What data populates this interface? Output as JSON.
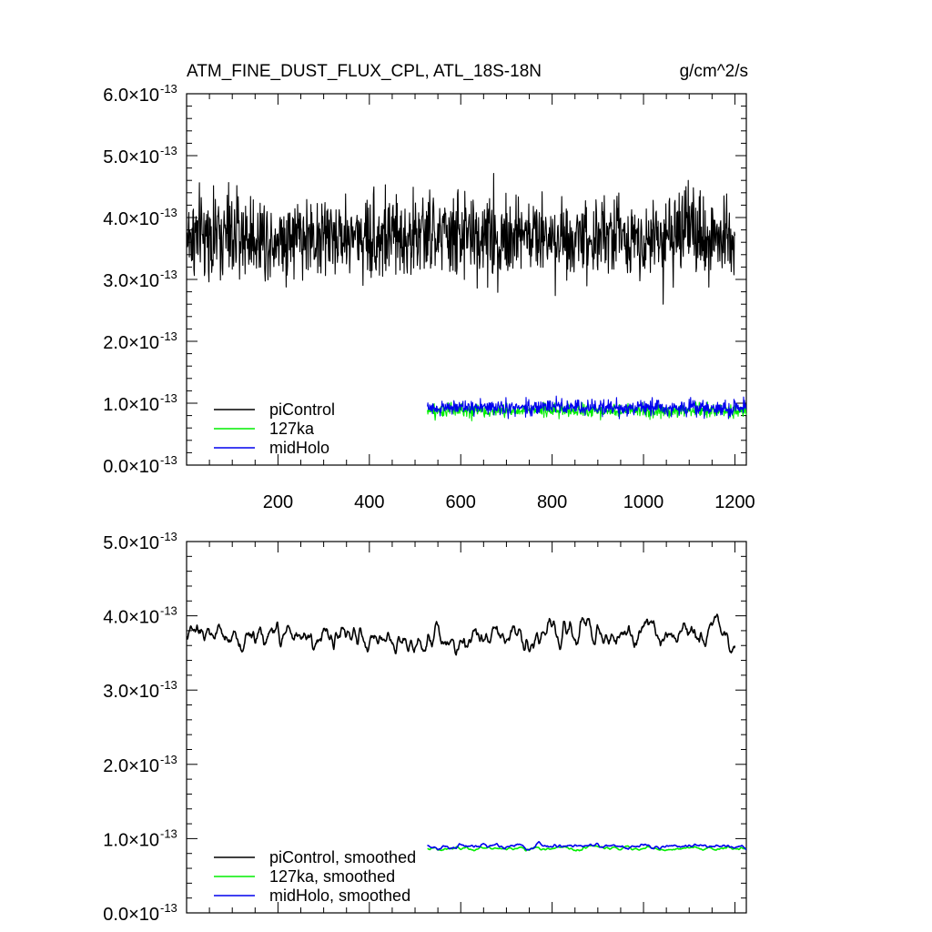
{
  "chart_data": [
    {
      "type": "line",
      "title": "ATM_FINE_DUST_FLUX_CPL, ATL_18S-18N",
      "units": "g/cm^2/s",
      "xlim": [
        0,
        1225
      ],
      "xticks": [
        200,
        400,
        600,
        800,
        1000,
        1200
      ],
      "ylim": [
        0,
        6
      ],
      "yscale_label": "×10^-13",
      "y_tick_labels": [
        {
          "v": 0,
          "mant": "0.0",
          "mid": "×10",
          "exp": "-13"
        },
        {
          "v": 1,
          "mant": "1.0",
          "mid": "×10",
          "exp": "-13"
        },
        {
          "v": 2,
          "mant": "2.0",
          "mid": "×10",
          "exp": "-13"
        },
        {
          "v": 3,
          "mant": "3.0",
          "mid": "×10",
          "exp": "-13"
        },
        {
          "v": 4,
          "mant": "4.0",
          "mid": "×10",
          "exp": "-13"
        },
        {
          "v": 5,
          "mant": "5.0",
          "mid": "×10",
          "exp": "-13"
        },
        {
          "v": 6,
          "mant": "6.0",
          "mid": "×10",
          "exp": "-13"
        }
      ],
      "legend_placement": "bottom-left",
      "series": [
        {
          "name": "piControl",
          "color": "#000000",
          "x_range": [
            1,
            1200
          ],
          "mean": 3.7,
          "min": 2.6,
          "max": 5.3,
          "noise": "high-frequency"
        },
        {
          "name": "127ka",
          "color": "#00ee00",
          "x_range": [
            527,
            1225
          ],
          "mean": 0.88,
          "min": 0.68,
          "max": 1.1,
          "noise": "high-frequency"
        },
        {
          "name": "midHolo",
          "color": "#0000ee",
          "x_range": [
            527,
            1225
          ],
          "mean": 0.93,
          "min": 0.72,
          "max": 1.2,
          "noise": "high-frequency"
        }
      ]
    },
    {
      "type": "line",
      "title": "",
      "xlim": [
        0,
        1225
      ],
      "xticks": [
        200,
        400,
        600,
        800,
        1000,
        1200
      ],
      "ylim": [
        0,
        5
      ],
      "yscale_label": "×10^-13",
      "y_tick_labels": [
        {
          "v": 0,
          "mant": "0.0",
          "mid": "×10",
          "exp": "-13"
        },
        {
          "v": 1,
          "mant": "1.0",
          "mid": "×10",
          "exp": "-13"
        },
        {
          "v": 2,
          "mant": "2.0",
          "mid": "×10",
          "exp": "-13"
        },
        {
          "v": 3,
          "mant": "3.0",
          "mid": "×10",
          "exp": "-13"
        },
        {
          "v": 4,
          "mant": "4.0",
          "mid": "×10",
          "exp": "-13"
        },
        {
          "v": 5,
          "mant": "5.0",
          "mid": "×10",
          "exp": "-13"
        }
      ],
      "legend_placement": "bottom-left",
      "series": [
        {
          "name": "piControl, smoothed",
          "color": "#000000",
          "x_range": [
            1,
            1200
          ],
          "mean": 3.72,
          "min": 3.25,
          "max": 4.22,
          "noise": "smoothed"
        },
        {
          "name": "127ka, smoothed",
          "color": "#00ee00",
          "x_range": [
            527,
            1225
          ],
          "mean": 0.87,
          "min": 0.8,
          "max": 0.95,
          "noise": "smoothed"
        },
        {
          "name": "midHolo, smoothed",
          "color": "#0000ee",
          "x_range": [
            527,
            1225
          ],
          "mean": 0.9,
          "min": 0.82,
          "max": 1.0,
          "noise": "smoothed"
        }
      ]
    }
  ]
}
